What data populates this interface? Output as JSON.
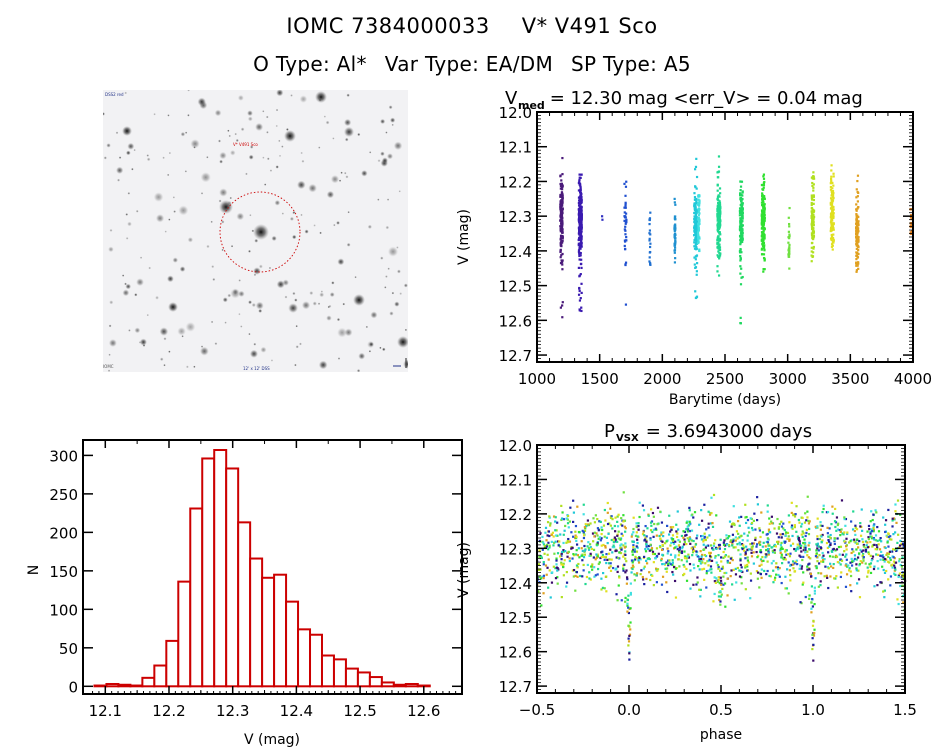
{
  "header": {
    "object_id": "IOMC 7384000033",
    "star_name": "V* V491 Sco",
    "o_type": "O Type: Al*",
    "var_type": "Var Type: EA/DM",
    "sp_type": "SP Type: A5"
  },
  "image_panel": {
    "label_top_left": "DSS2 red",
    "label_target": "V* V491 Sco",
    "label_bottom_center": "12' x 12' DSS",
    "label_bottom_left": "IOMC",
    "marker_color": "#cc0000"
  },
  "chart_data": [
    {
      "id": "lightcurve",
      "type": "scatter",
      "title_main": "V",
      "title_sub": "med",
      "title_rest": " = 12.30 mag <err_V> = 0.04 mag",
      "xlabel": "Barytime (days)",
      "ylabel": "V (mag)",
      "xlim": [
        1000,
        4000
      ],
      "ylim": [
        12.72,
        12.0
      ],
      "y_inverted": true,
      "xticks": [
        1000,
        1500,
        2000,
        2500,
        3000,
        3500,
        4000
      ],
      "xtick_labels": [
        "1000",
        "1500",
        "2000",
        "2500",
        "3000",
        "3500",
        "4000"
      ],
      "yticks": [
        12.0,
        12.1,
        12.2,
        12.3,
        12.4,
        12.5,
        12.6,
        12.7
      ],
      "ytick_labels": [
        "12.0",
        "12.1",
        "12.2",
        "12.3",
        "12.4",
        "12.5",
        "12.6",
        "12.7"
      ],
      "seasons": [
        {
          "x": 1195,
          "xspread": 10,
          "n": 180,
          "ymin": 12.12,
          "ymax": 12.6,
          "center": 12.3,
          "color": "#4a1a7a"
        },
        {
          "x": 1345,
          "xspread": 12,
          "n": 260,
          "ymin": 12.18,
          "ymax": 12.6,
          "center": 12.31,
          "color": "#3a1ab0"
        },
        {
          "x": 1520,
          "xspread": 2,
          "n": 2,
          "ymin": 12.3,
          "ymax": 12.31,
          "center": 12.305,
          "color": "#3030c0"
        },
        {
          "x": 1705,
          "xspread": 8,
          "n": 40,
          "ymin": 12.17,
          "ymax": 12.56,
          "center": 12.32,
          "color": "#2050d0"
        },
        {
          "x": 1900,
          "xspread": 4,
          "n": 20,
          "ymin": 12.27,
          "ymax": 12.44,
          "center": 12.38,
          "color": "#2070d0"
        },
        {
          "x": 2100,
          "xspread": 4,
          "n": 45,
          "ymin": 12.25,
          "ymax": 12.46,
          "center": 12.34,
          "color": "#1e90d0"
        },
        {
          "x": 2265,
          "xspread": 12,
          "n": 150,
          "ymin": 12.13,
          "ymax": 12.55,
          "center": 12.32,
          "color": "#20c8d8"
        },
        {
          "x": 2290,
          "xspread": 6,
          "n": 60,
          "ymin": 12.24,
          "ymax": 12.4,
          "center": 12.31,
          "color": "#40e0e0"
        },
        {
          "x": 2450,
          "xspread": 12,
          "n": 160,
          "ymin": 12.11,
          "ymax": 12.48,
          "center": 12.31,
          "color": "#20d890"
        },
        {
          "x": 2630,
          "xspread": 12,
          "n": 150,
          "ymin": 12.2,
          "ymax": 12.62,
          "center": 12.32,
          "color": "#20d860"
        },
        {
          "x": 2805,
          "xspread": 12,
          "n": 200,
          "ymin": 12.18,
          "ymax": 12.46,
          "center": 12.31,
          "color": "#30e030"
        },
        {
          "x": 3010,
          "xspread": 5,
          "n": 25,
          "ymin": 12.26,
          "ymax": 12.53,
          "center": 12.4,
          "color": "#70e040"
        },
        {
          "x": 3200,
          "xspread": 10,
          "n": 100,
          "ymin": 12.15,
          "ymax": 12.43,
          "center": 12.32,
          "color": "#b0e020"
        },
        {
          "x": 3355,
          "xspread": 12,
          "n": 120,
          "ymin": 12.08,
          "ymax": 12.42,
          "center": 12.29,
          "color": "#e0e020"
        },
        {
          "x": 3555,
          "xspread": 10,
          "n": 110,
          "ymin": 12.18,
          "ymax": 12.46,
          "center": 12.35,
          "color": "#e0a020"
        },
        {
          "x": 3985,
          "xspread": 6,
          "n": 20,
          "ymin": 12.28,
          "ymax": 12.35,
          "center": 12.32,
          "color": "#e08020"
        }
      ]
    },
    {
      "id": "histogram",
      "type": "bar",
      "xlabel": "V (mag)",
      "ylabel": "N",
      "xlim": [
        12.065,
        12.66
      ],
      "ylim": [
        -10,
        320
      ],
      "xticks": [
        12.1,
        12.2,
        12.3,
        12.4,
        12.5,
        12.6
      ],
      "xtick_labels": [
        "12.1",
        "12.2",
        "12.3",
        "12.4",
        "12.5",
        "12.6"
      ],
      "yticks": [
        0,
        50,
        100,
        150,
        200,
        250,
        300
      ],
      "ytick_labels": [
        "0",
        "50",
        "100",
        "150",
        "200",
        "250",
        "300"
      ],
      "bin_start": 12.083,
      "bin_width": 0.0188,
      "values": [
        1,
        3,
        2,
        1,
        11,
        27,
        59,
        136,
        231,
        296,
        307,
        283,
        213,
        166,
        141,
        145,
        110,
        74,
        67,
        40,
        35,
        23,
        18,
        12,
        5,
        2,
        3,
        1
      ],
      "bar_color": "#cc0000"
    },
    {
      "id": "phased",
      "type": "scatter",
      "title_main": "P",
      "title_sub": "VSX",
      "title_rest": " = 3.6943000 days",
      "xlabel": "phase",
      "ylabel": "V (mag)",
      "xlim": [
        -0.5,
        1.5
      ],
      "ylim": [
        12.72,
        12.0
      ],
      "y_inverted": true,
      "xticks": [
        -0.5,
        0.0,
        0.5,
        1.0,
        1.5
      ],
      "xtick_labels": [
        "−0.5",
        "0.0",
        "0.5",
        "1.0",
        "1.5"
      ],
      "yticks": [
        12.0,
        12.1,
        12.2,
        12.3,
        12.4,
        12.5,
        12.6,
        12.7
      ],
      "ytick_labels": [
        "12.0",
        "12.1",
        "12.2",
        "12.3",
        "12.4",
        "12.5",
        "12.6",
        "12.7"
      ],
      "period_days": 3.6943,
      "primary_eclipse_phase": 0.0,
      "primary_eclipse_depth_mag": 0.25,
      "baseline_mag": 12.3,
      "palette": [
        "#3a0a6a",
        "#1a20a0",
        "#20c8d8",
        "#40e0e0",
        "#20d890",
        "#30e030",
        "#70e040",
        "#b0e020",
        "#e0e020",
        "#e0a020",
        "#2050d0"
      ]
    }
  ]
}
